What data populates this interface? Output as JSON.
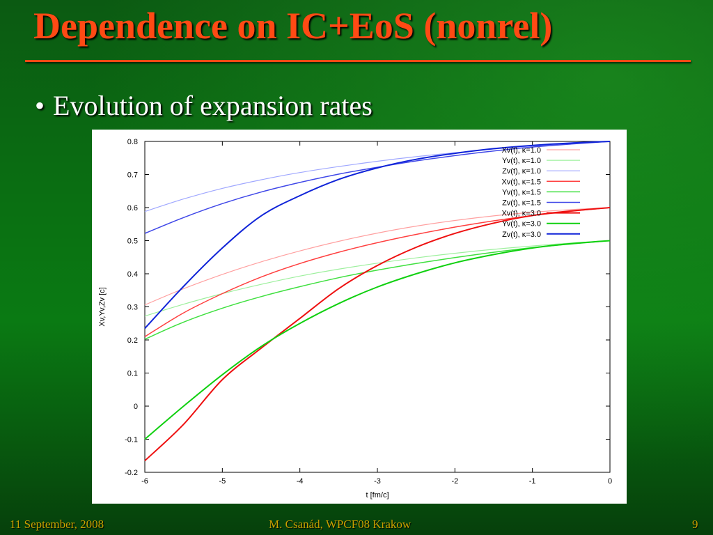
{
  "slide": {
    "title": "Dependence on IC+EoS (nonrel)",
    "bullet": "Evolution of expansion rates"
  },
  "footer": {
    "date": "11 September, 2008",
    "author": "M. Csanád, WPCF08 Krakow",
    "page": "9"
  },
  "colors": {
    "title": "#ff4a14",
    "footer": "#c9a000",
    "red_light": "#ffa0a0",
    "green_light": "#9ef09e",
    "blue_light": "#a0a8ff",
    "red_mid": "#ff4040",
    "green_mid": "#40e040",
    "blue_mid": "#4048e8",
    "red_dark": "#ee1010",
    "green_dark": "#10d010",
    "blue_dark": "#1024d8"
  },
  "chart_data": {
    "type": "line",
    "xlabel": "t [fm/c]",
    "ylabel": "Xv,Yv,Zv [c]",
    "xlim": [
      -6,
      0
    ],
    "ylim": [
      -0.2,
      0.8
    ],
    "xticks": [
      "-6",
      "-5",
      "-4",
      "-3",
      "-2",
      "-1",
      "0"
    ],
    "yticks": [
      "-0.2",
      "-0.1",
      "0",
      "0.1",
      "0.2",
      "0.3",
      "0.4",
      "0.5",
      "0.6",
      "0.7",
      "0.8"
    ],
    "grid": false,
    "legend": "top-right",
    "x": [
      -6,
      -5.5,
      -5,
      -4.5,
      -4,
      -3.5,
      -3,
      -2.5,
      -2,
      -1.5,
      -1,
      -0.5,
      0
    ],
    "series": [
      {
        "name": "Xv(t),  κ=1.0",
        "color": "#ffa0a0",
        "width": 1.2,
        "values": [
          0.306,
          0.355,
          0.398,
          0.436,
          0.469,
          0.498,
          0.523,
          0.544,
          0.561,
          0.575,
          0.586,
          0.594,
          0.6
        ]
      },
      {
        "name": "Yv(t),  κ=1.0",
        "color": "#9ef09e",
        "width": 1.2,
        "values": [
          0.272,
          0.308,
          0.34,
          0.368,
          0.393,
          0.414,
          0.432,
          0.448,
          0.462,
          0.474,
          0.484,
          0.493,
          0.5
        ]
      },
      {
        "name": "Zv(t),  κ=1.0",
        "color": "#a0a8ff",
        "width": 1.2,
        "values": [
          0.588,
          0.626,
          0.658,
          0.684,
          0.706,
          0.724,
          0.74,
          0.754,
          0.766,
          0.777,
          0.786,
          0.793,
          0.8
        ]
      },
      {
        "name": "Xv(t),  κ=1.5",
        "color": "#ff4040",
        "width": 1.5,
        "values": [
          0.21,
          0.282,
          0.34,
          0.39,
          0.431,
          0.465,
          0.494,
          0.519,
          0.541,
          0.56,
          0.576,
          0.589,
          0.6
        ]
      },
      {
        "name": "Yv(t),  κ=1.5",
        "color": "#40e040",
        "width": 1.5,
        "values": [
          0.202,
          0.254,
          0.296,
          0.331,
          0.361,
          0.388,
          0.411,
          0.431,
          0.449,
          0.465,
          0.479,
          0.49,
          0.5
        ]
      },
      {
        "name": "Zv(t),  κ=1.5",
        "color": "#4048e8",
        "width": 1.5,
        "values": [
          0.522,
          0.57,
          0.612,
          0.647,
          0.676,
          0.701,
          0.722,
          0.741,
          0.757,
          0.771,
          0.783,
          0.792,
          0.8
        ]
      },
      {
        "name": "Xv(t),  κ=3.0",
        "color": "#ee1010",
        "width": 2.0,
        "values": [
          -0.165,
          -0.055,
          0.08,
          0.175,
          0.265,
          0.355,
          0.425,
          0.48,
          0.522,
          0.553,
          0.576,
          0.59,
          0.6
        ]
      },
      {
        "name": "Yv(t),  κ=3.0",
        "color": "#10d010",
        "width": 2.0,
        "values": [
          -0.1,
          0.0,
          0.095,
          0.18,
          0.25,
          0.31,
          0.36,
          0.4,
          0.433,
          0.458,
          0.478,
          0.491,
          0.5
        ]
      },
      {
        "name": "Zv(t),  κ=3.0",
        "color": "#1024d8",
        "width": 2.0,
        "values": [
          0.235,
          0.362,
          0.478,
          0.575,
          0.636,
          0.685,
          0.72,
          0.746,
          0.764,
          0.778,
          0.788,
          0.795,
          0.8
        ]
      }
    ]
  }
}
